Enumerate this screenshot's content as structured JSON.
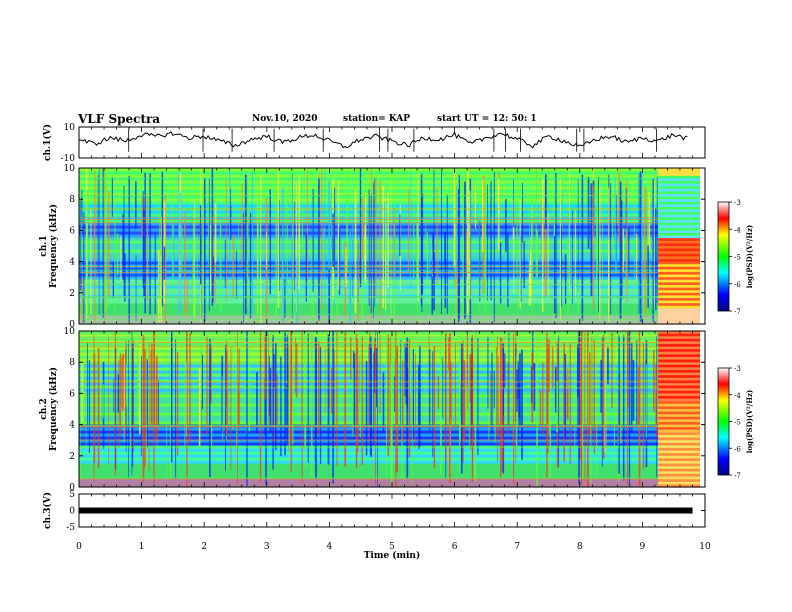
{
  "header": {
    "title": "VLF Spectra",
    "date": "Nov.10, 2020",
    "station": "station= KAP",
    "start": "start  UT =   12: 50: 1"
  },
  "chart_data": [
    {
      "type": "line",
      "panel": "ch1-waveform",
      "ylabel": "ch.1(V)",
      "ylim": [
        -10,
        10
      ],
      "yticks": [
        "10",
        "-10"
      ],
      "xlim": [
        0,
        10
      ],
      "series_color": "#000000",
      "x": [
        0,
        0.25,
        0.5,
        0.75,
        1,
        1.25,
        1.5,
        1.75,
        2,
        2.25,
        2.5,
        2.75,
        3,
        3.25,
        3.5,
        3.75,
        4,
        4.25,
        4.5,
        4.75,
        5,
        5.25,
        5.5,
        5.75,
        6,
        6.25,
        6.5,
        6.75,
        7,
        7.25,
        7.5,
        7.75,
        8,
        8.25,
        8.5,
        8.75,
        9,
        9.25,
        9.5,
        9.75
      ],
      "y": [
        2,
        -1,
        3,
        1,
        5,
        4,
        6,
        3,
        4,
        1,
        -2,
        2,
        4,
        0,
        3,
        5,
        1,
        -3,
        2,
        4,
        1,
        -2,
        3,
        2,
        5,
        -1,
        3,
        6,
        2,
        -2,
        4,
        1,
        -3,
        2,
        4,
        0,
        3,
        1,
        5,
        2
      ]
    },
    {
      "type": "heatmap",
      "panel": "ch1-spectrogram",
      "ylabel": "ch.1\nFrequency  (kHz)",
      "xlim": [
        0,
        10
      ],
      "ylim": [
        0,
        10
      ],
      "yticks": [
        "0",
        "2",
        "4",
        "6",
        "8",
        "10"
      ],
      "colorbar": {
        "label": "log(PSD)(V²/Hz)",
        "ticks": [
          "-3",
          "-4",
          "-5",
          "-6",
          "-7"
        ],
        "range": [
          -7,
          -3
        ]
      }
    },
    {
      "type": "heatmap",
      "panel": "ch2-spectrogram",
      "ylabel": "ch.2\nFrequency  (kHz)",
      "xlim": [
        0,
        10
      ],
      "ylim": [
        0,
        10
      ],
      "yticks": [
        "0",
        "2",
        "4",
        "6",
        "8",
        "10"
      ],
      "colorbar": {
        "label": "log(PSD)(V²/Hz)",
        "ticks": [
          "-3",
          "-4",
          "-5",
          "-6",
          "-7"
        ],
        "range": [
          -7,
          -3
        ]
      }
    },
    {
      "type": "line",
      "panel": "ch3-waveform",
      "ylabel": "ch.3(V)",
      "ylim": [
        -5,
        5
      ],
      "yticks": [
        "5",
        "0",
        "-5"
      ],
      "xlim": [
        0,
        10
      ],
      "series_color": "#000000",
      "x": [
        0,
        9.8
      ],
      "y": [
        0,
        0
      ]
    }
  ],
  "x_axis": {
    "xlabel": "Time  (min)",
    "ticks": [
      "0",
      "1",
      "2",
      "3",
      "4",
      "5",
      "6",
      "7",
      "8",
      "9",
      "10"
    ]
  },
  "colors": {
    "high": "#ff0000",
    "mid_high": "#ffff00",
    "mid": "#00ff00",
    "mid_low": "#00ffff",
    "low": "#0000ff",
    "lowest": "#000080"
  }
}
